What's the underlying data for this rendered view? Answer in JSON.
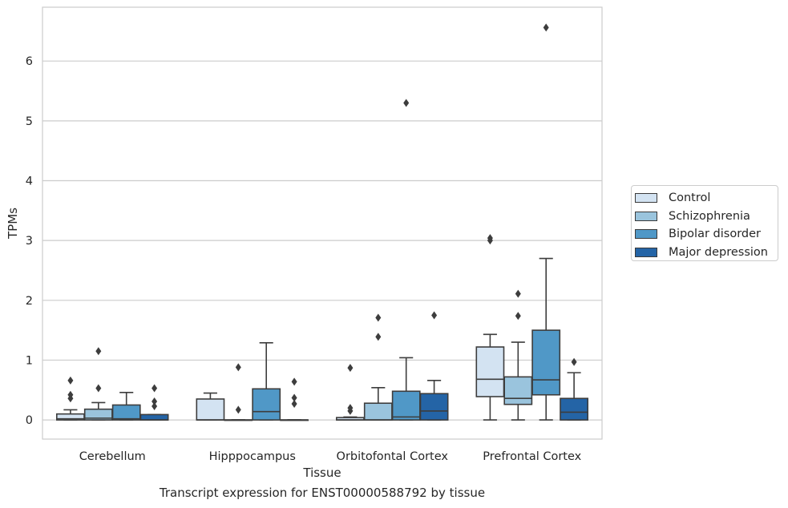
{
  "caption": "Transcript expression for ENST00000588792 by tissue",
  "chart_data": {
    "type": "box",
    "xlabel": "Tissue",
    "ylabel": "TPMs",
    "ylim": [
      -0.32,
      6.9
    ],
    "yticks": [
      0,
      1,
      2,
      3,
      4,
      5,
      6
    ],
    "grid": "horizontal",
    "legend_position": "right",
    "categories": [
      "Cerebellum",
      "Hipppocampus",
      "Orbitofontal Cortex",
      "Prefrontal Cortex"
    ],
    "series": [
      {
        "name": "Control",
        "color": "#d3e3f2",
        "boxes": [
          {
            "whislo": 0,
            "q1": 0,
            "med": 0.02,
            "q3": 0.1,
            "whishi": 0.17,
            "fliers": [
              0.36,
              0.42,
              0.66
            ]
          },
          {
            "whislo": 0,
            "q1": 0,
            "med": 0.0,
            "q3": 0.35,
            "whishi": 0.45,
            "fliers": []
          },
          {
            "whislo": 0,
            "q1": 0,
            "med": 0.0,
            "q3": 0.04,
            "whishi": 0.05,
            "fliers": [
              0.15,
              0.2,
              0.87
            ]
          },
          {
            "whislo": 0,
            "q1": 0.39,
            "med": 0.68,
            "q3": 1.22,
            "whishi": 1.43,
            "fliers": [
              3.0,
              3.04
            ]
          }
        ]
      },
      {
        "name": "Schizophrenia",
        "color": "#9ac4dd",
        "boxes": [
          {
            "whislo": 0,
            "q1": 0,
            "med": 0.03,
            "q3": 0.18,
            "whishi": 0.29,
            "fliers": [
              0.53,
              1.15
            ]
          },
          {
            "whislo": 0,
            "q1": 0,
            "med": 0.0,
            "q3": 0.0,
            "whishi": 0.0,
            "fliers": [
              0.17,
              0.88
            ]
          },
          {
            "whislo": 0,
            "q1": 0,
            "med": 0.0,
            "q3": 0.28,
            "whishi": 0.54,
            "fliers": [
              1.39,
              1.71
            ]
          },
          {
            "whislo": 0,
            "q1": 0.26,
            "med": 0.36,
            "q3": 0.72,
            "whishi": 1.3,
            "fliers": [
              1.74,
              2.11
            ]
          }
        ]
      },
      {
        "name": "Bipolar disorder",
        "color": "#5098c7",
        "boxes": [
          {
            "whislo": 0,
            "q1": 0,
            "med": 0.02,
            "q3": 0.25,
            "whishi": 0.46,
            "fliers": []
          },
          {
            "whislo": 0,
            "q1": 0,
            "med": 0.14,
            "q3": 0.52,
            "whishi": 1.29,
            "fliers": []
          },
          {
            "whislo": 0,
            "q1": 0,
            "med": 0.05,
            "q3": 0.48,
            "whishi": 1.04,
            "fliers": [
              5.3
            ]
          },
          {
            "whislo": 0,
            "q1": 0.42,
            "med": 0.67,
            "q3": 1.5,
            "whishi": 2.7,
            "fliers": [
              6.56
            ]
          }
        ]
      },
      {
        "name": "Major depression",
        "color": "#2464a6",
        "boxes": [
          {
            "whislo": 0,
            "q1": 0,
            "med": 0.0,
            "q3": 0.09,
            "whishi": 0.09,
            "fliers": [
              0.23,
              0.31,
              0.53
            ]
          },
          {
            "whislo": 0,
            "q1": 0,
            "med": 0.0,
            "q3": 0.0,
            "whishi": 0.0,
            "fliers": [
              0.27,
              0.37,
              0.64
            ]
          },
          {
            "whislo": 0,
            "q1": 0,
            "med": 0.15,
            "q3": 0.44,
            "whishi": 0.66,
            "fliers": [
              1.75
            ]
          },
          {
            "whislo": 0,
            "q1": 0,
            "med": 0.13,
            "q3": 0.36,
            "whishi": 0.79,
            "fliers": [
              0.97
            ]
          }
        ]
      }
    ]
  }
}
